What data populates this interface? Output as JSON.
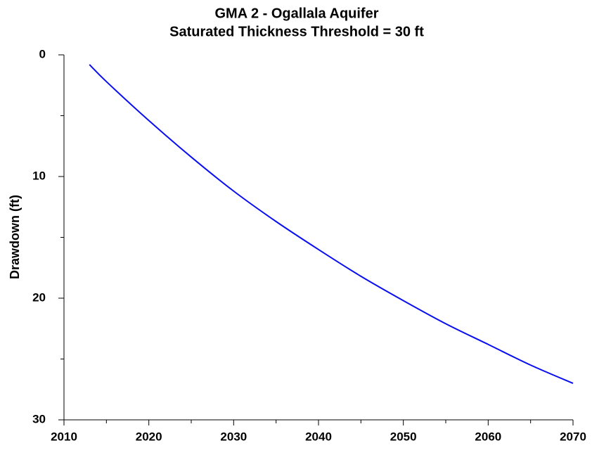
{
  "chart_data": {
    "type": "line",
    "title": "GMA 2 - Ogallala Aquifer",
    "subtitle": "Saturated Thickness Threshold = 30 ft",
    "y_label": "Drawdown (ft)",
    "x": [
      2013,
      2015,
      2020,
      2025,
      2030,
      2035,
      2040,
      2045,
      2050,
      2055,
      2060,
      2065,
      2070
    ],
    "series": [
      {
        "color": "#0a0ff0",
        "values": [
          0.8,
          2.2,
          5.4,
          8.4,
          11.2,
          13.7,
          16.0,
          18.2,
          20.2,
          22.1,
          23.8,
          25.5,
          27.0
        ]
      }
    ],
    "xlim": [
      2010,
      2070
    ],
    "xticks": [
      2010,
      2020,
      2030,
      2040,
      2050,
      2060,
      2070
    ],
    "x_minor_ticks": [
      2015,
      2025,
      2035,
      2045,
      2055,
      2065
    ],
    "ylim": [
      0,
      30
    ],
    "yticks": [
      0,
      10,
      20,
      30
    ],
    "y_minor_ticks": [
      5,
      15,
      25
    ],
    "y_inverted": true
  }
}
